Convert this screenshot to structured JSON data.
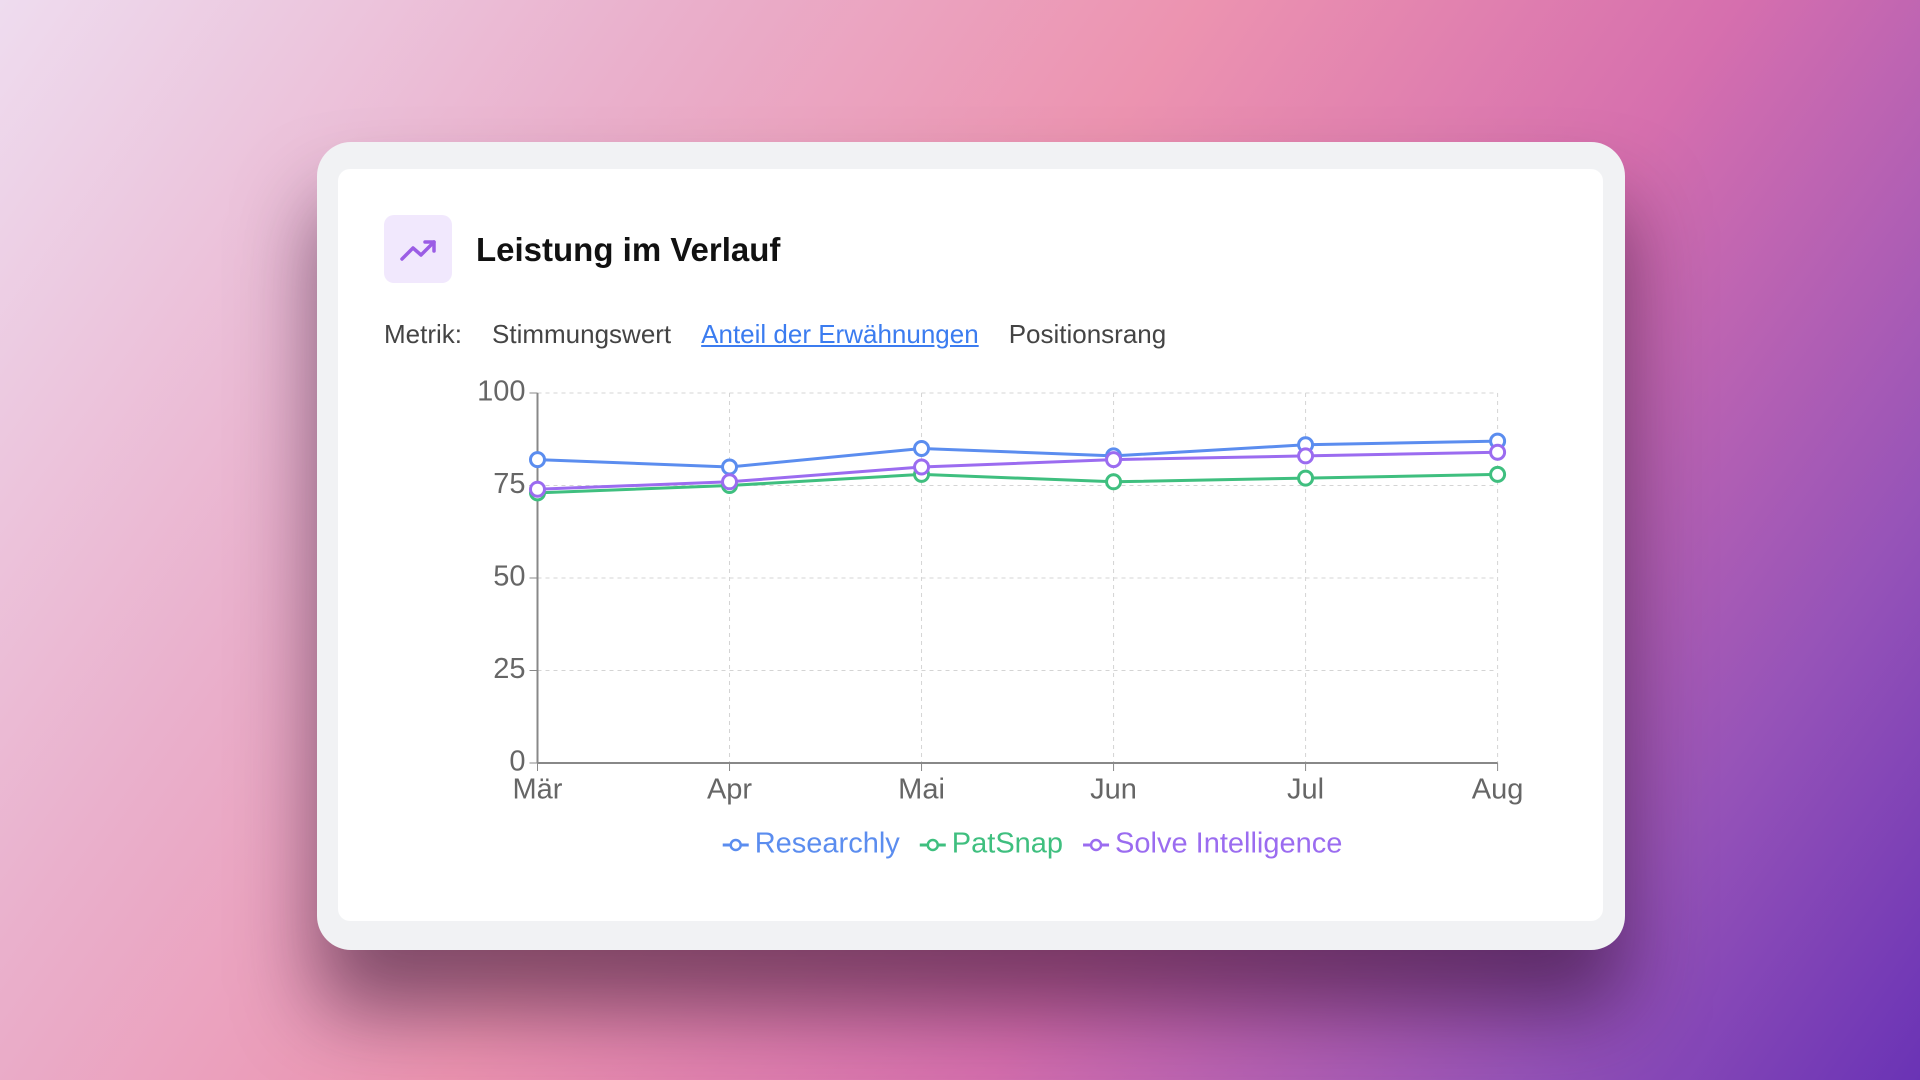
{
  "header": {
    "title": "Leistung im Verlauf"
  },
  "metric_tabs": {
    "label": "Metrik:",
    "options": [
      "Stimmungswert",
      "Anteil der Erwähnungen",
      "Positionsrang"
    ],
    "active": 1
  },
  "chart_data": {
    "type": "line",
    "categories": [
      "Mär",
      "Apr",
      "Mai",
      "Jun",
      "Jul",
      "Aug"
    ],
    "series": [
      {
        "name": "Researchly",
        "color": "#5b8def",
        "values": [
          82,
          80,
          85,
          83,
          86,
          87
        ]
      },
      {
        "name": "PatSnap",
        "color": "#3fbf7f",
        "values": [
          73,
          75,
          78,
          76,
          77,
          78
        ]
      },
      {
        "name": "Solve Intelligence",
        "color": "#9b6cf0",
        "values": [
          74,
          76,
          80,
          82,
          83,
          84
        ]
      }
    ],
    "ylim": [
      0,
      100
    ],
    "yticks": [
      0,
      25,
      50,
      75,
      100
    ],
    "grid": true,
    "legend": "bottom"
  }
}
